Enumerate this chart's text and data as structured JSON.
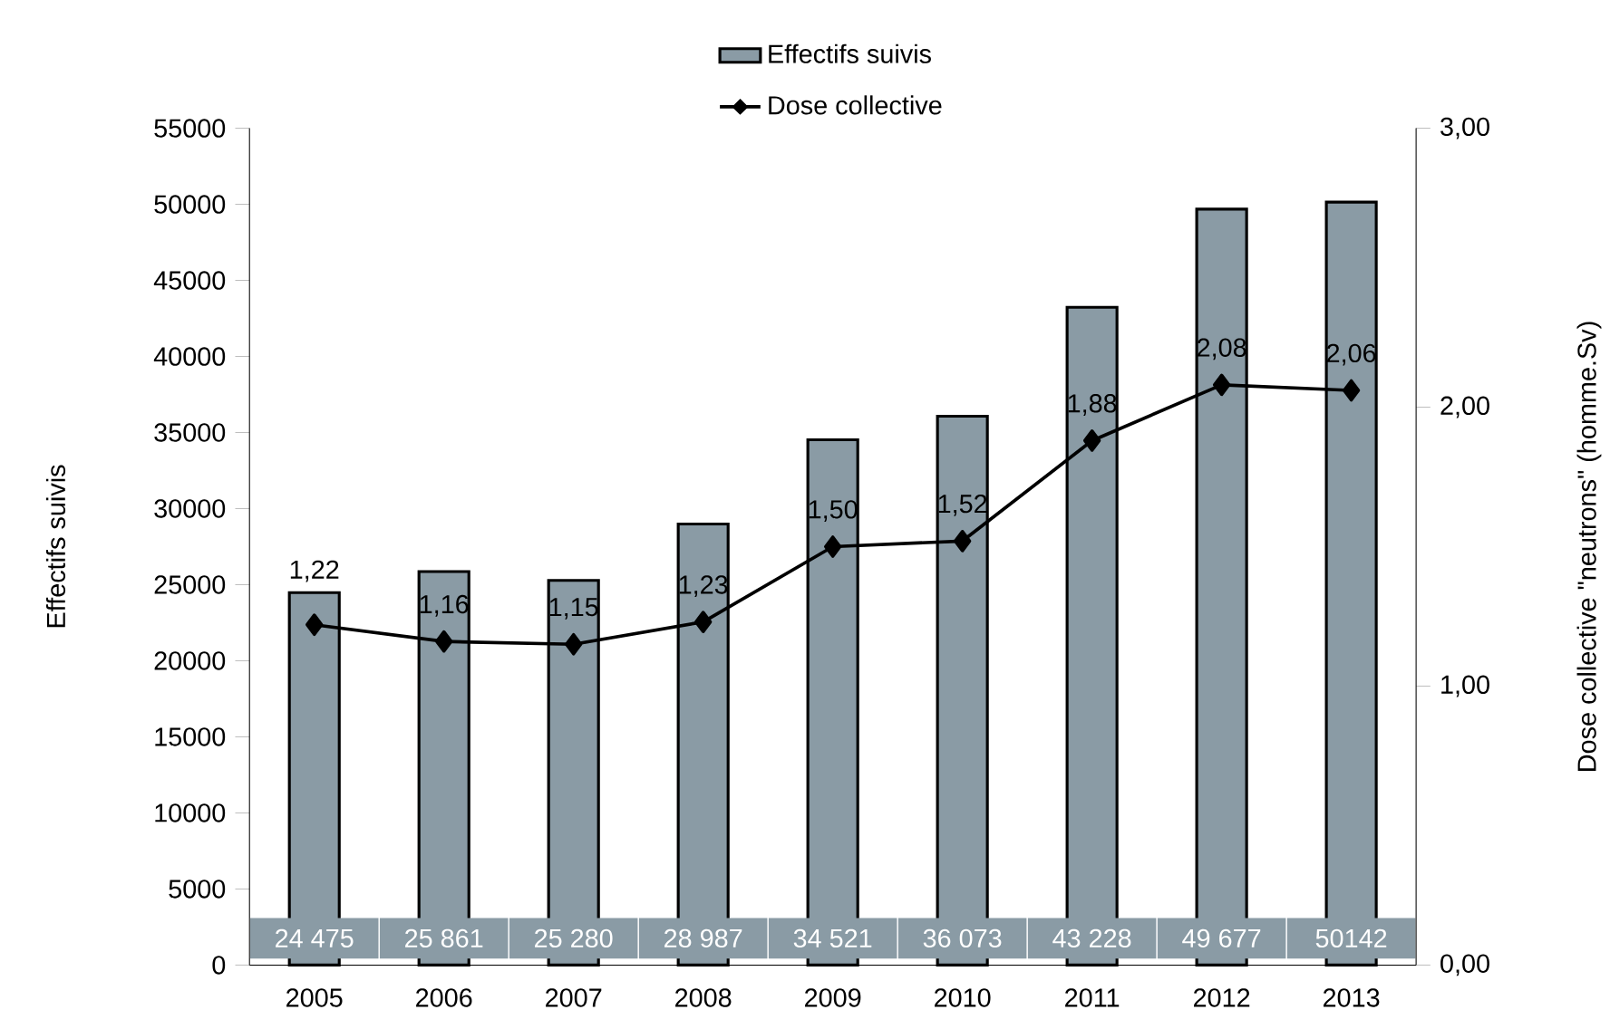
{
  "chart_data": {
    "type": "bar",
    "categories": [
      "2005",
      "2006",
      "2007",
      "2008",
      "2009",
      "2010",
      "2011",
      "2012",
      "2013"
    ],
    "ylabel": "Effectifs suivis",
    "y2label": "Dose collective \"neutrons\" (homme.Sv)",
    "ylim": [
      0,
      55000
    ],
    "yticks": [
      0,
      5000,
      10000,
      15000,
      20000,
      25000,
      30000,
      35000,
      40000,
      45000,
      50000,
      55000
    ],
    "y2lim": [
      0,
      3
    ],
    "y2ticks": [
      {
        "value": 0,
        "label": "0,00"
      },
      {
        "value": 1,
        "label": "1,00"
      },
      {
        "value": 2,
        "label": "2,00"
      },
      {
        "value": 3,
        "label": "3,00"
      }
    ],
    "legend": "top",
    "series": [
      {
        "name": "Effectifs suivis",
        "color": "#8a9ba5",
        "values": [
          24475,
          25861,
          25280,
          28987,
          34521,
          36073,
          43228,
          49677,
          50142
        ],
        "value_labels": [
          "24 475",
          "25 861",
          "25 280",
          "28 987",
          "34 521",
          "36 073",
          "43 228",
          "49 677",
          "50142"
        ]
      },
      {
        "name": "Dose collective",
        "type": "line",
        "axis": "y2",
        "color": "#000000",
        "marker": "diamond",
        "values": [
          1.22,
          1.16,
          1.15,
          1.23,
          1.5,
          1.52,
          1.88,
          2.08,
          2.06
        ],
        "value_labels": [
          "1,22",
          "1,16",
          "1,15",
          "1,23",
          "1,50",
          "1,52",
          "1,88",
          "2,08",
          "2,06"
        ]
      }
    ]
  }
}
